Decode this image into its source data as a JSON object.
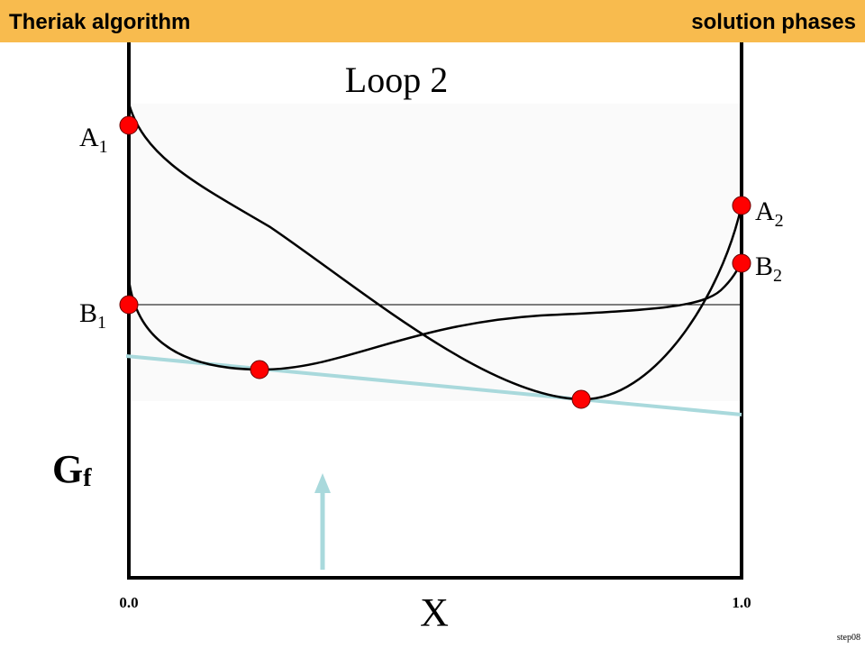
{
  "header": {
    "title": "Theriak algorithm",
    "subtitle": "solution phases"
  },
  "diagram": {
    "title": "Loop 2",
    "labels": [
      {
        "base": "A",
        "sub": "1"
      },
      {
        "base": "B",
        "sub": "1"
      },
      {
        "base": "A",
        "sub": "2"
      },
      {
        "base": "B",
        "sub": "2"
      }
    ],
    "y_label": {
      "base": "G",
      "sub": "f"
    },
    "x_label": "X",
    "x_min": "0.0",
    "x_max": "1.0"
  },
  "footer": "step08"
}
